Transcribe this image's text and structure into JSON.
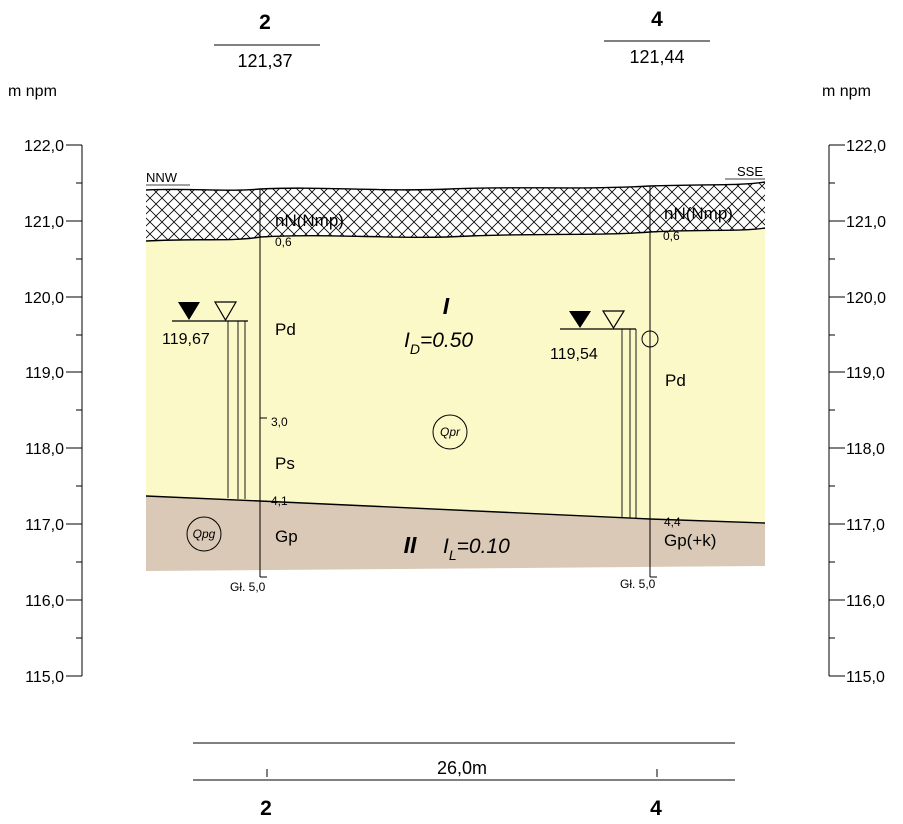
{
  "units_label": "m npm",
  "axis_ticks": [
    "122,0",
    "121,0",
    "120,0",
    "119,0",
    "118,0",
    "117,0",
    "116,0",
    "115,0"
  ],
  "directions": {
    "left": "NNW",
    "right": "SSE"
  },
  "boreholes": [
    {
      "number": "2",
      "elevation": "121,37",
      "depth_end": "Gł. 5,0",
      "water_level": "119,67",
      "layers": [
        {
          "depth_label": "0,6",
          "symbol": "nN(Nmp)"
        },
        {
          "depth_label": "3,0",
          "symbol": "Pd"
        },
        {
          "depth_label": "4,1",
          "symbol": "Ps"
        },
        {
          "depth_label": "",
          "symbol": "Gp"
        }
      ]
    },
    {
      "number": "4",
      "elevation": "121,44",
      "depth_end": "Gł. 5,0",
      "water_level": "119,54",
      "layers": [
        {
          "depth_label": "0,6",
          "symbol": "nN(Nmp)"
        },
        {
          "depth_label": "4,4",
          "symbol": "Pd"
        },
        {
          "depth_label": "",
          "symbol": "Gp(+k)"
        }
      ]
    }
  ],
  "geotechnical_layers": [
    {
      "roman": "I",
      "param_symbol": "I",
      "param_subscript": "D",
      "param_value": "=0.50",
      "stratigraphy": "Qpr",
      "color": "#fcf9c9"
    },
    {
      "roman": "II",
      "param_symbol": "I",
      "param_subscript": "L",
      "param_value": "=0.10",
      "stratigraphy": "Qpg",
      "color": "#d9c9b6"
    }
  ],
  "fill_layer_color": "#ffffff",
  "distance_label": "26,0m"
}
